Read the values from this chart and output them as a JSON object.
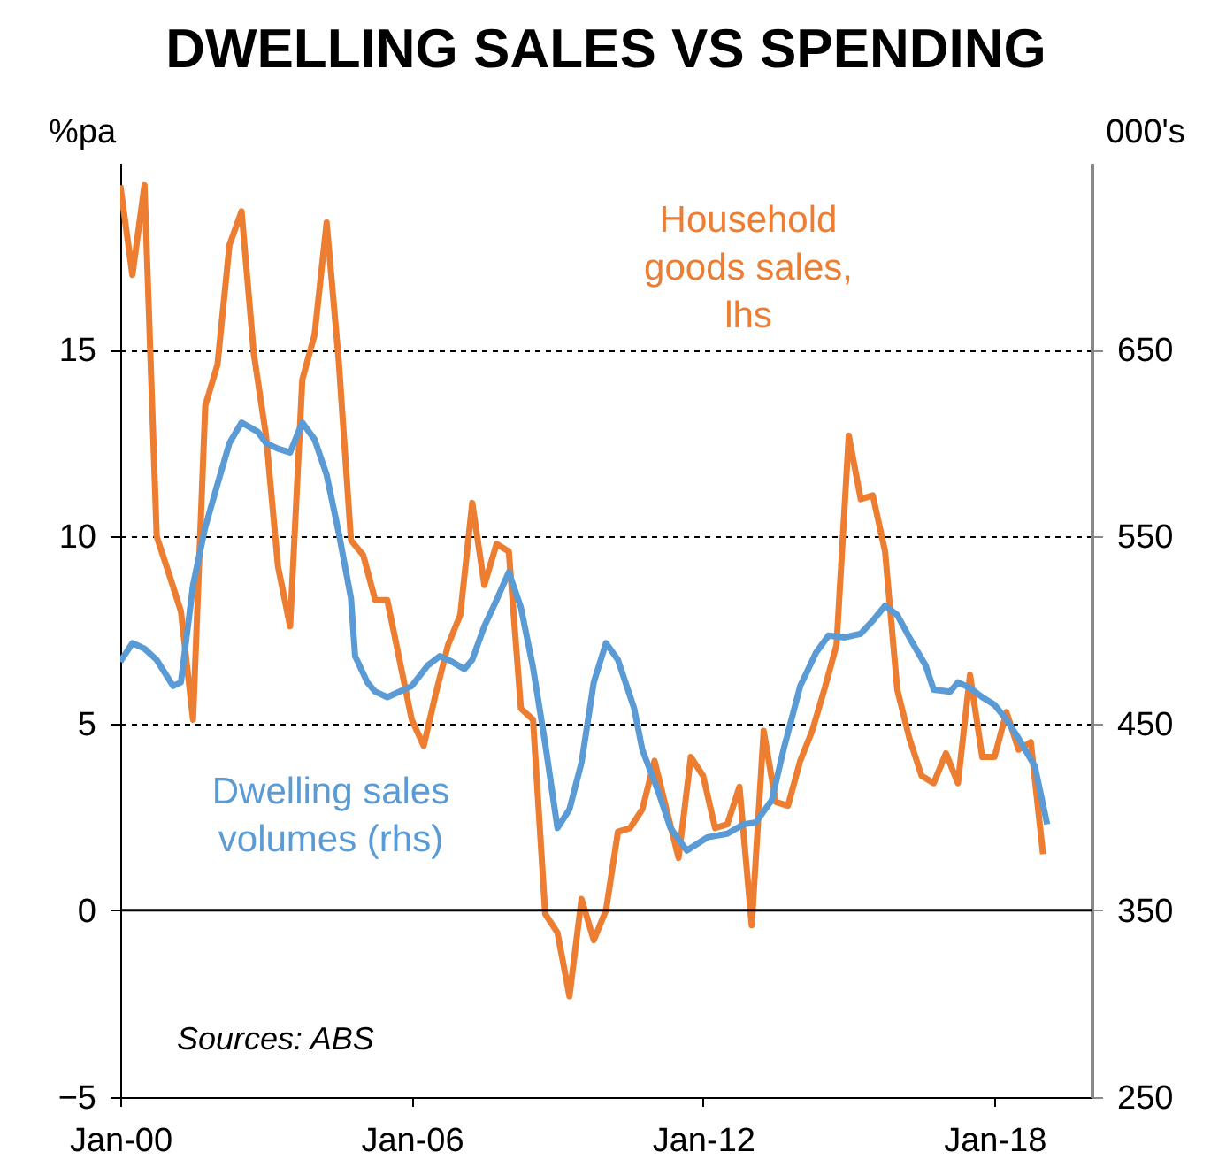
{
  "chart_data": {
    "type": "line",
    "title": "DWELLING SALES VS SPENDING",
    "ylabel": "%pa",
    "y2label": "000's",
    "xlim": [
      "2000-01",
      "2020-01"
    ],
    "xticks": [
      {
        "value": "2000-01",
        "label": "Jan-00"
      },
      {
        "value": "2006-01",
        "label": "Jan-06"
      },
      {
        "value": "2012-01",
        "label": "Jan-12"
      },
      {
        "value": "2018-01",
        "label": "Jan-18"
      }
    ],
    "ylim": [
      -5,
      20
    ],
    "yticks": [
      -5,
      0,
      5,
      10,
      15
    ],
    "y2lim": [
      250,
      750
    ],
    "y2ticks": [
      250,
      350,
      450,
      550,
      650
    ],
    "grid": "y",
    "ref_lines": [
      {
        "axis": "y",
        "value": 0,
        "color": "#000000"
      }
    ],
    "annotations": [
      "Sources: ABS"
    ],
    "series": [
      {
        "name": "Household\ngoods sales,\nlhs",
        "color": "#ed7d31",
        "x": [
          "2000-01",
          "2000-04",
          "2000-07",
          "2000-10",
          "2001-01",
          "2001-04",
          "2001-07",
          "2001-10",
          "2002-01",
          "2002-04",
          "2002-07",
          "2002-10",
          "2003-01",
          "2003-04",
          "2003-07",
          "2003-10",
          "2004-01",
          "2004-04",
          "2004-07",
          "2004-10",
          "2005-01",
          "2005-04",
          "2005-07",
          "2005-10",
          "2006-01",
          "2006-04",
          "2006-07",
          "2006-10",
          "2007-01",
          "2007-04",
          "2007-07",
          "2007-10",
          "2008-01",
          "2008-04",
          "2008-07",
          "2008-10",
          "2009-01",
          "2009-04",
          "2009-07",
          "2009-10",
          "2010-01",
          "2010-04",
          "2010-07",
          "2010-10",
          "2011-01",
          "2011-04",
          "2011-07",
          "2011-10",
          "2012-01",
          "2012-04",
          "2012-07",
          "2012-10",
          "2013-01",
          "2013-04",
          "2013-07",
          "2013-10",
          "2014-01",
          "2014-04",
          "2014-07",
          "2014-10",
          "2015-01",
          "2015-04",
          "2015-07",
          "2015-10",
          "2016-01",
          "2016-04",
          "2016-07",
          "2016-10",
          "2017-01",
          "2017-04",
          "2017-07",
          "2017-10",
          "2018-01",
          "2018-04",
          "2018-07",
          "2018-10",
          "2019-01"
        ],
        "values": [
          19.4,
          17.0,
          19.4,
          10.0,
          9.0,
          8.0,
          5.1,
          13.5,
          14.6,
          17.8,
          18.7,
          14.9,
          12.7,
          9.2,
          7.6,
          14.2,
          15.4,
          18.4,
          14.7,
          9.9,
          9.5,
          8.3,
          8.3,
          6.7,
          5.1,
          4.4,
          5.8,
          7.1,
          7.9,
          10.9,
          8.7,
          9.8,
          9.6,
          5.4,
          5.1,
          -0.1,
          -0.6,
          -2.3,
          0.3,
          -0.8,
          0.0,
          2.1,
          2.2,
          2.7,
          4.0,
          2.7,
          1.4,
          4.1,
          3.6,
          2.2,
          2.3,
          3.3,
          -0.4,
          4.8,
          2.9,
          2.8,
          4.0,
          4.8,
          5.9,
          7.1,
          12.7,
          11.0,
          11.1,
          9.6,
          5.9,
          4.6,
          3.6,
          3.4,
          4.2,
          3.4,
          6.3,
          4.1,
          4.1,
          5.3,
          4.3,
          4.5,
          1.5
        ]
      },
      {
        "name": "Dwelling sales\nvolumes (rhs)",
        "color": "#5b9bd5",
        "axis": "y2",
        "x": [
          "2000-01",
          "2000-04",
          "2000-07",
          "2000-10",
          "2001-02",
          "2001-04",
          "2001-07",
          "2001-10",
          "2002-01",
          "2002-04",
          "2002-07",
          "2002-11",
          "2003-01",
          "2003-04",
          "2003-07",
          "2003-10",
          "2004-01",
          "2004-04",
          "2004-07",
          "2004-10",
          "2004-11",
          "2005-02",
          "2005-04",
          "2005-07",
          "2005-10",
          "2006-01",
          "2006-05",
          "2006-08",
          "2006-11",
          "2007-02",
          "2007-04",
          "2007-07",
          "2007-10",
          "2008-01",
          "2008-04",
          "2008-07",
          "2008-10",
          "2009-01",
          "2009-04",
          "2009-07",
          "2009-10",
          "2010-01",
          "2010-04",
          "2010-08",
          "2010-10",
          "2011-02",
          "2011-05",
          "2011-09",
          "2012-02",
          "2012-07",
          "2012-11",
          "2013-02",
          "2013-06",
          "2013-09",
          "2014-01",
          "2014-05",
          "2014-08",
          "2014-12",
          "2015-04",
          "2015-07",
          "2015-10",
          "2016-01",
          "2016-04",
          "2016-08",
          "2016-10",
          "2017-02",
          "2017-04",
          "2017-07",
          "2017-10",
          "2018-01",
          "2018-04",
          "2018-07",
          "2018-11",
          "2019-02"
        ],
        "values": [
          483,
          493,
          490,
          484,
          470,
          472,
          524,
          555,
          578,
          600,
          611,
          606,
          600,
          597,
          595,
          611,
          602,
          583,
          552,
          517,
          486,
          472,
          467,
          464,
          467,
          470,
          481,
          486,
          483,
          479,
          484,
          502,
          516,
          531,
          512,
          480,
          439,
          394,
          404,
          429,
          472,
          493,
          484,
          458,
          436,
          413,
          394,
          382,
          389,
          391,
          396,
          397,
          409,
          437,
          470,
          488,
          497,
          496,
          498,
          505,
          513,
          508,
          496,
          481,
          468,
          467,
          472,
          469,
          464,
          460,
          452,
          442,
          427,
          396
        ]
      }
    ]
  }
}
